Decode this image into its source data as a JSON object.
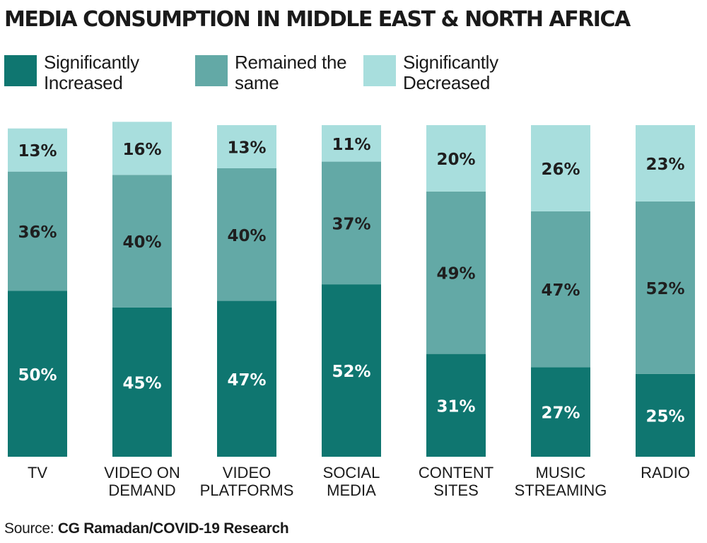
{
  "chart_data": {
    "type": "bar",
    "stacked": true,
    "title": "MEDIA CONSUMPTION IN MIDDLE EAST & NORTH AFRICA",
    "categories": [
      "TV",
      "VIDEO ON DEMAND",
      "VIDEO PLATFORMS",
      "SOCIAL MEDIA",
      "CONTENT SITES",
      "MUSIC STREAMING",
      "RADIO"
    ],
    "category_lines": [
      [
        "TV"
      ],
      [
        "VIDEO ON",
        "DEMAND"
      ],
      [
        "VIDEO",
        "PLATFORMS"
      ],
      [
        "SOCIAL",
        "MEDIA"
      ],
      [
        "CONTENT",
        "SITES"
      ],
      [
        "MUSIC",
        "STREAMING"
      ],
      [
        "RADIO"
      ]
    ],
    "series": [
      {
        "name": "Significantly Increased",
        "values": [
          50,
          45,
          47,
          52,
          31,
          27,
          25
        ],
        "color": "#0f7670"
      },
      {
        "name": "Remained the same",
        "values": [
          36,
          40,
          40,
          37,
          49,
          47,
          52
        ],
        "color": "#63a9a6"
      },
      {
        "name": "Significantly Decreased",
        "values": [
          13,
          16,
          13,
          11,
          20,
          26,
          23
        ],
        "color": "#a8dedd"
      }
    ],
    "value_suffix": "%",
    "legend_position": "top-left",
    "grid": false,
    "ylim": [
      0,
      100
    ]
  },
  "source": {
    "prefix": "Source: ",
    "text": "CG Ramadan/COVID-19 Research"
  }
}
